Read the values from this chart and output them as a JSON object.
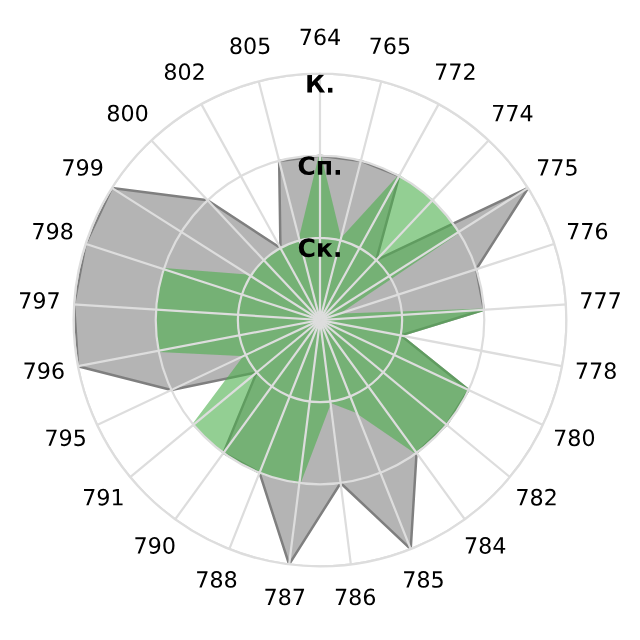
{
  "chart_data": {
    "type": "radar",
    "categories": [
      "764",
      "765",
      "772",
      "774",
      "775",
      "776",
      "777",
      "778",
      "780",
      "782",
      "784",
      "785",
      "786",
      "787",
      "788",
      "790",
      "791",
      "795",
      "796",
      "797",
      "798",
      "799",
      "800",
      "802",
      "805"
    ],
    "series": [
      {
        "color": "#b4b4b4",
        "values": [
          2,
          2,
          2,
          1,
          3,
          2,
          2,
          1,
          2,
          2,
          2,
          3,
          2,
          3,
          2,
          2,
          1,
          2,
          3,
          3,
          3,
          3,
          2,
          1,
          2
        ]
      },
      {
        "color": "#4cb04c",
        "values": [
          2,
          1,
          2,
          2,
          2,
          0.2,
          2,
          1,
          2,
          2,
          2,
          1.2,
          1,
          2,
          2,
          2,
          2,
          1,
          2,
          2,
          2,
          1,
          1,
          1,
          1
        ]
      }
    ],
    "ylim": [
      0,
      3
    ],
    "yticks": [
      {
        "value": 1,
        "label": "Ск."
      },
      {
        "value": 2,
        "label": "Сп."
      },
      {
        "value": 3,
        "label": "К."
      }
    ],
    "grid": true
  }
}
